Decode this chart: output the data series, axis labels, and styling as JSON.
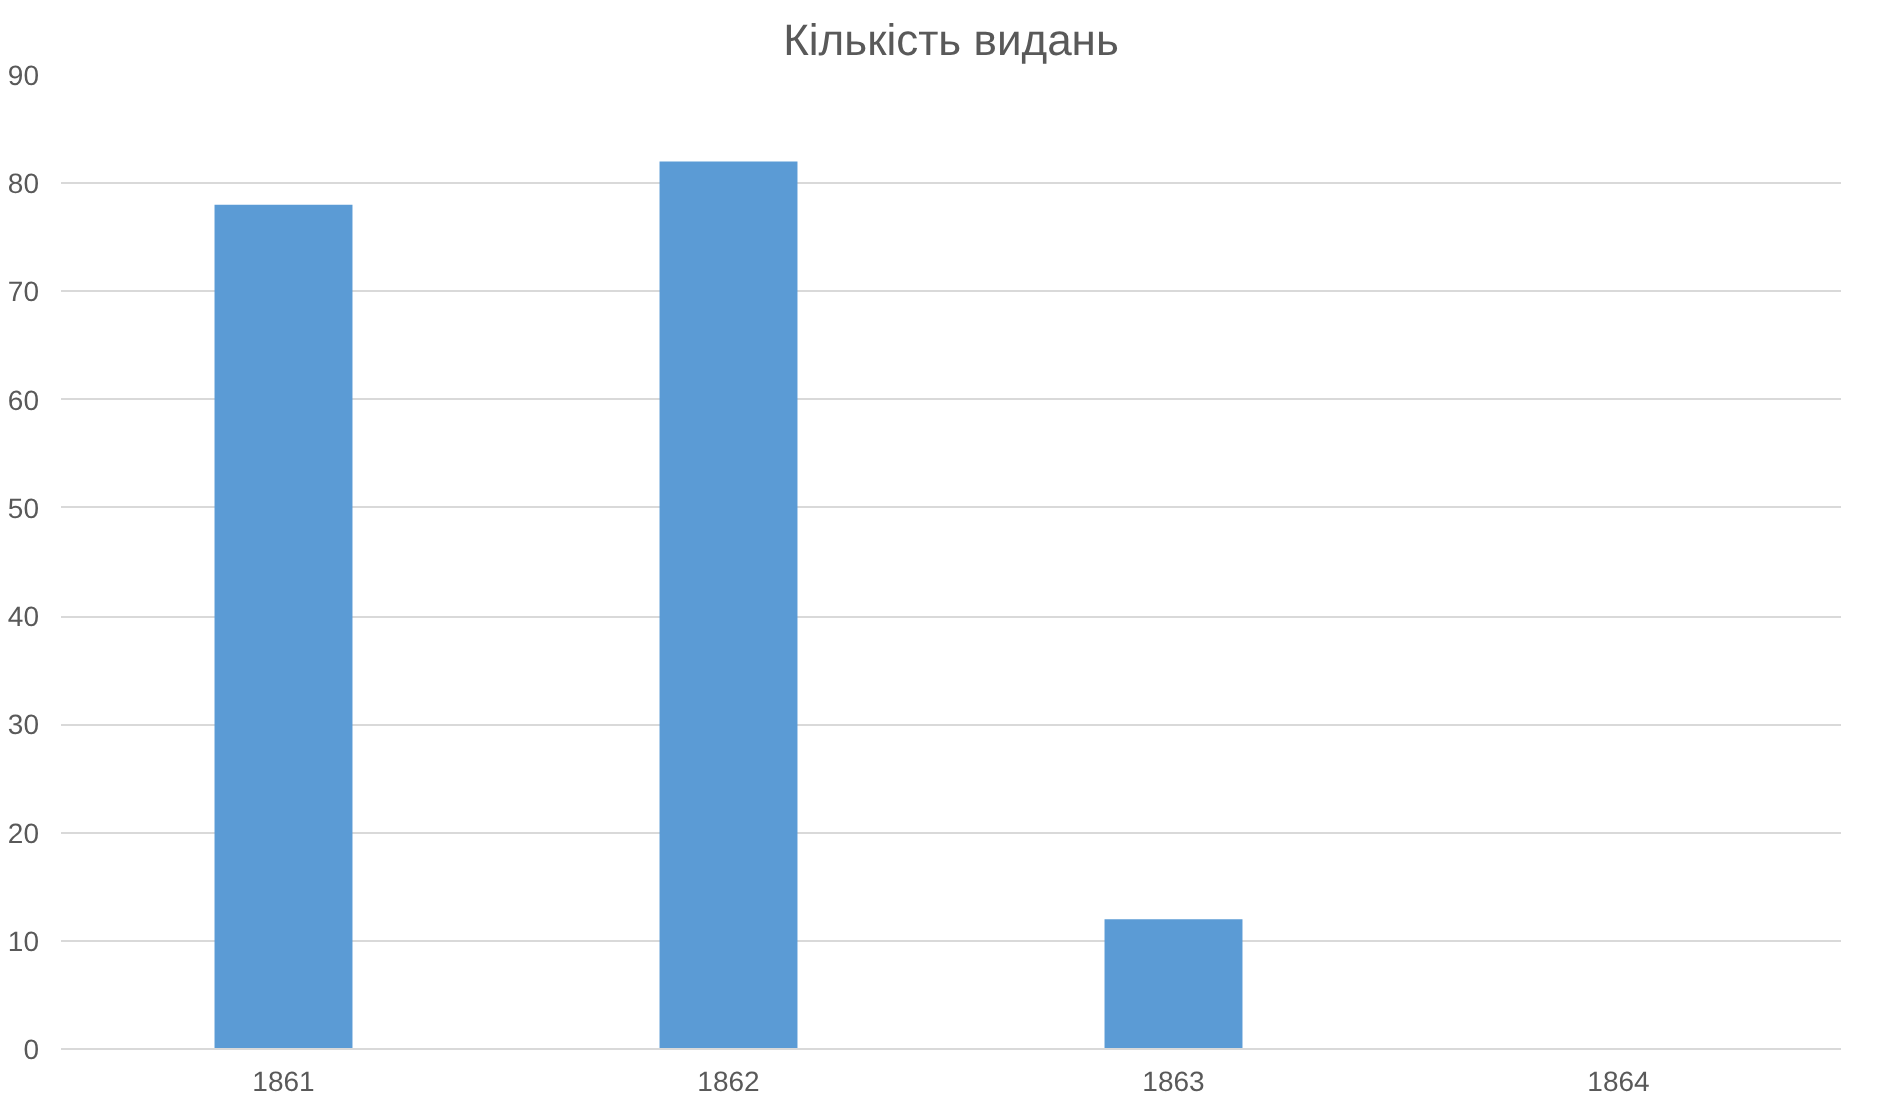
{
  "chart_data": {
    "type": "bar",
    "title": "Кількість видань",
    "categories": [
      "1861",
      "1862",
      "1863",
      "1864"
    ],
    "values": [
      78,
      82,
      12,
      0
    ],
    "color": "#5b9bd5",
    "ylim": [
      0,
      90
    ],
    "yticks": [
      0,
      10,
      20,
      30,
      40,
      50,
      60,
      70,
      80,
      90
    ],
    "grid": "y"
  }
}
